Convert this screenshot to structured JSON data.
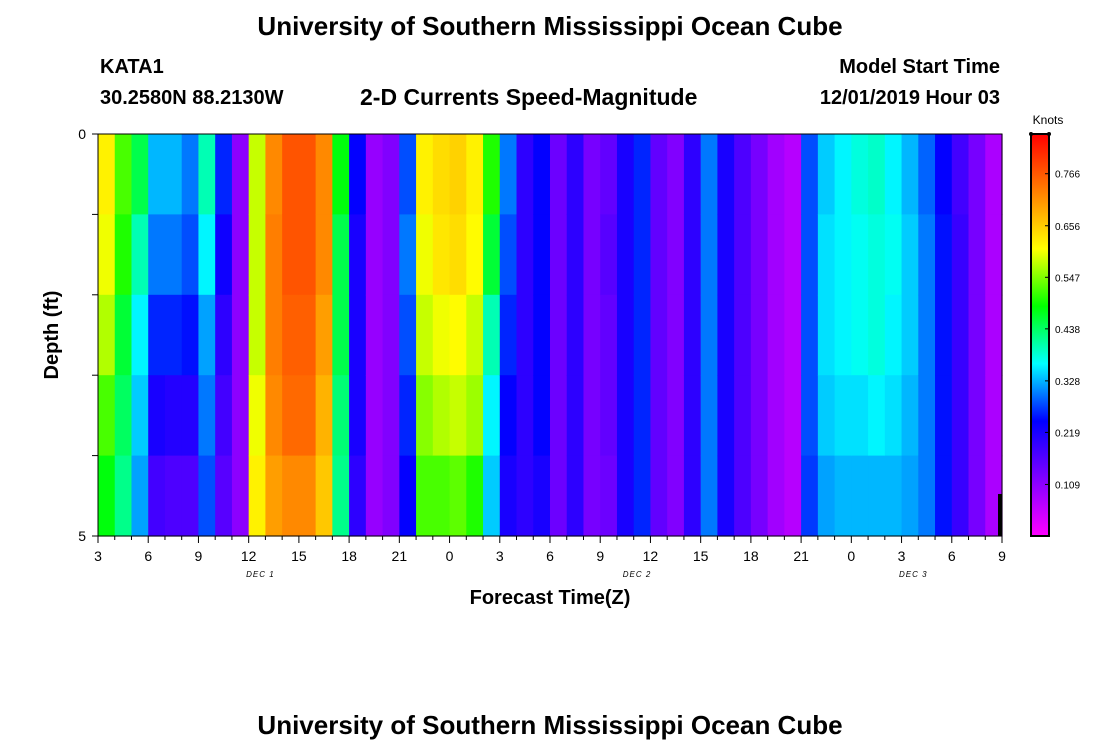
{
  "header": {
    "title": "University of Southern Mississippi Ocean Cube",
    "station": "KATA1",
    "coords": "30.2580N 88.2130W",
    "subtitle": "2-D Currents Speed-Magnitude",
    "model_start_label": "Model Start Time",
    "model_start_value": "12/01/2019 Hour 03"
  },
  "footer": {
    "title": "University of Southern Mississippi Ocean Cube"
  },
  "chart_data": {
    "type": "heatmap",
    "title": "2-D Currents Speed-Magnitude",
    "xlabel": "Forecast Time(Z)",
    "ylabel": "Depth (ft)",
    "x_unit": "forecast hour since 12/01/2019 03Z",
    "x_range": [
      0,
      54
    ],
    "y_range": [
      0,
      5
    ],
    "y_ticks": [
      0,
      5
    ],
    "x_ticks": [
      {
        "hour": 0,
        "label": "3"
      },
      {
        "hour": 3,
        "label": "6"
      },
      {
        "hour": 6,
        "label": "9"
      },
      {
        "hour": 9,
        "label": "12"
      },
      {
        "hour": 12,
        "label": "15"
      },
      {
        "hour": 15,
        "label": "18"
      },
      {
        "hour": 18,
        "label": "21"
      },
      {
        "hour": 21,
        "label": "0"
      },
      {
        "hour": 24,
        "label": "3"
      },
      {
        "hour": 27,
        "label": "6"
      },
      {
        "hour": 30,
        "label": "9"
      },
      {
        "hour": 33,
        "label": "12"
      },
      {
        "hour": 36,
        "label": "15"
      },
      {
        "hour": 39,
        "label": "18"
      },
      {
        "hour": 42,
        "label": "21"
      },
      {
        "hour": 45,
        "label": "0"
      },
      {
        "hour": 48,
        "label": "3"
      },
      {
        "hour": 51,
        "label": "6"
      },
      {
        "hour": 54,
        "label": "9"
      }
    ],
    "date_labels": [
      {
        "hour": 9.7,
        "label": "DEC 1"
      },
      {
        "hour": 32.2,
        "label": "DEC 2"
      },
      {
        "hour": 48.7,
        "label": "DEC 3"
      }
    ],
    "depth_bands": [
      0,
      1,
      2,
      3,
      4,
      5
    ],
    "values": [
      [
        0.62,
        0.6,
        0.57,
        0.52,
        0.48,
        0.42
      ],
      [
        0.52,
        0.5,
        0.46,
        0.44,
        0.42,
        0.38
      ],
      [
        0.45,
        0.4,
        0.36,
        0.34,
        0.32,
        0.3
      ],
      [
        0.33,
        0.3,
        0.26,
        0.22,
        0.18,
        0.14
      ],
      [
        0.33,
        0.3,
        0.26,
        0.21,
        0.17,
        0.14
      ],
      [
        0.3,
        0.28,
        0.25,
        0.21,
        0.17,
        0.14
      ],
      [
        0.4,
        0.36,
        0.32,
        0.3,
        0.28,
        0.26
      ],
      [
        0.26,
        0.23,
        0.2,
        0.18,
        0.16,
        0.14
      ],
      [
        0.11,
        0.11,
        0.11,
        0.11,
        0.11,
        0.11
      ],
      [
        0.58,
        0.58,
        0.58,
        0.6,
        0.62,
        0.62
      ],
      [
        0.72,
        0.73,
        0.73,
        0.72,
        0.7,
        0.66
      ],
      [
        0.77,
        0.77,
        0.76,
        0.75,
        0.72,
        0.68
      ],
      [
        0.77,
        0.77,
        0.76,
        0.75,
        0.72,
        0.68
      ],
      [
        0.72,
        0.72,
        0.7,
        0.68,
        0.66,
        0.64
      ],
      [
        0.48,
        0.45,
        0.45,
        0.43,
        0.42,
        0.4
      ],
      [
        0.24,
        0.22,
        0.22,
        0.22,
        0.2,
        0.2
      ],
      [
        0.1,
        0.1,
        0.1,
        0.1,
        0.1,
        0.1
      ],
      [
        0.12,
        0.12,
        0.12,
        0.12,
        0.12,
        0.12
      ],
      [
        0.28,
        0.3,
        0.28,
        0.26,
        0.24,
        0.2
      ],
      [
        0.62,
        0.6,
        0.58,
        0.55,
        0.52,
        0.44
      ],
      [
        0.64,
        0.63,
        0.6,
        0.57,
        0.52,
        0.46
      ],
      [
        0.65,
        0.64,
        0.61,
        0.58,
        0.53,
        0.46
      ],
      [
        0.62,
        0.61,
        0.58,
        0.56,
        0.5,
        0.44
      ],
      [
        0.5,
        0.46,
        0.4,
        0.36,
        0.34,
        0.3
      ],
      [
        0.3,
        0.28,
        0.26,
        0.24,
        0.22,
        0.2
      ],
      [
        0.2,
        0.2,
        0.2,
        0.2,
        0.2,
        0.2
      ],
      [
        0.24,
        0.24,
        0.24,
        0.24,
        0.22,
        0.2
      ],
      [
        0.14,
        0.14,
        0.14,
        0.14,
        0.14,
        0.14
      ],
      [
        0.2,
        0.2,
        0.2,
        0.2,
        0.2,
        0.2
      ],
      [
        0.13,
        0.13,
        0.13,
        0.13,
        0.13,
        0.13
      ],
      [
        0.15,
        0.16,
        0.15,
        0.15,
        0.14,
        0.14
      ],
      [
        0.22,
        0.22,
        0.22,
        0.22,
        0.22,
        0.22
      ],
      [
        0.26,
        0.26,
        0.26,
        0.26,
        0.26,
        0.26
      ],
      [
        0.15,
        0.15,
        0.15,
        0.15,
        0.15,
        0.15
      ],
      [
        0.12,
        0.12,
        0.12,
        0.12,
        0.12,
        0.12
      ],
      [
        0.2,
        0.2,
        0.2,
        0.2,
        0.2,
        0.2
      ],
      [
        0.3,
        0.3,
        0.3,
        0.3,
        0.3,
        0.3
      ],
      [
        0.22,
        0.22,
        0.22,
        0.22,
        0.22,
        0.22
      ],
      [
        0.17,
        0.17,
        0.17,
        0.17,
        0.17,
        0.17
      ],
      [
        0.13,
        0.13,
        0.13,
        0.13,
        0.13,
        0.13
      ],
      [
        0.09,
        0.09,
        0.09,
        0.09,
        0.09,
        0.09
      ],
      [
        0.07,
        0.07,
        0.07,
        0.07,
        0.07,
        0.07
      ],
      [
        0.28,
        0.28,
        0.28,
        0.28,
        0.27,
        0.26
      ],
      [
        0.34,
        0.35,
        0.35,
        0.34,
        0.32,
        0.3
      ],
      [
        0.36,
        0.36,
        0.36,
        0.35,
        0.33,
        0.31
      ],
      [
        0.38,
        0.37,
        0.37,
        0.35,
        0.33,
        0.31
      ],
      [
        0.39,
        0.38,
        0.38,
        0.36,
        0.33,
        0.31
      ],
      [
        0.36,
        0.37,
        0.36,
        0.35,
        0.33,
        0.3
      ],
      [
        0.33,
        0.34,
        0.34,
        0.33,
        0.32,
        0.3
      ],
      [
        0.29,
        0.3,
        0.3,
        0.3,
        0.3,
        0.29
      ],
      [
        0.24,
        0.25,
        0.25,
        0.25,
        0.25,
        0.25
      ],
      [
        0.18,
        0.19,
        0.19,
        0.19,
        0.19,
        0.19
      ],
      [
        0.13,
        0.13,
        0.13,
        0.13,
        0.13,
        0.13
      ],
      [
        0.08,
        0.08,
        0.08,
        0.08,
        0.08,
        0.08
      ]
    ],
    "colorbar": {
      "label": "Knots",
      "range": [
        0.0,
        0.85
      ],
      "ticks": [
        "0.766",
        "0.656",
        "0.547",
        "0.438",
        "0.328",
        "0.219",
        "0.109"
      ],
      "colors": [
        "#ff00ff",
        "#8000ff",
        "#0000ff",
        "#00ffff",
        "#00ff00",
        "#ffff00",
        "#ff8000",
        "#ff0000"
      ]
    }
  }
}
